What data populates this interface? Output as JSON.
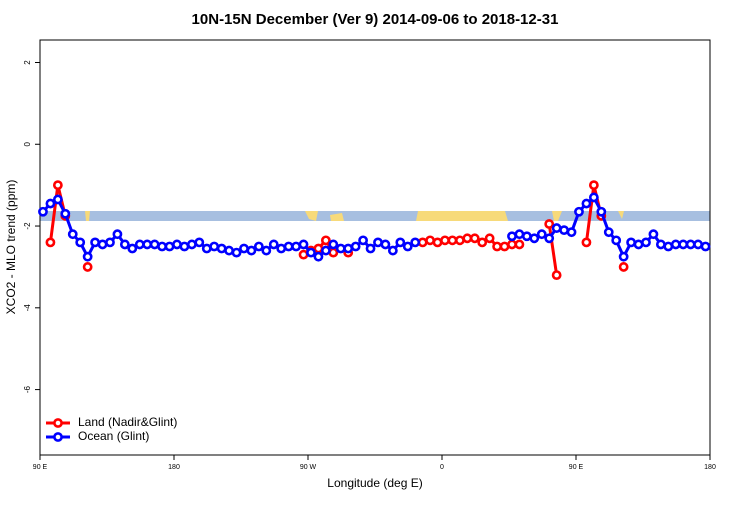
{
  "chart_data": {
    "type": "line",
    "title": "10N-15N December (Ver 9)   2014-09-06 to 2018-12-31",
    "x_label": "Longitude (deg E)",
    "y_label": "XCO2 - MLO trend (ppm)",
    "x": [
      92,
      97,
      102,
      107,
      112,
      117,
      122,
      127,
      132,
      137,
      142,
      147,
      152,
      157,
      162,
      167,
      172,
      177,
      182,
      187,
      192,
      197,
      202,
      207,
      212,
      217,
      222,
      227,
      232,
      237,
      242,
      247,
      252,
      257,
      262,
      267,
      272,
      277,
      282,
      287,
      292,
      297,
      302,
      307,
      312,
      317,
      322,
      327,
      332,
      337,
      342,
      347,
      352,
      357,
      362,
      367,
      372,
      377,
      382,
      387,
      392,
      397,
      402,
      407,
      412,
      417,
      422,
      427,
      432,
      437,
      442,
      447,
      452,
      457,
      462,
      467,
      472,
      477,
      482,
      487,
      492,
      497,
      502,
      507,
      512,
      517,
      522,
      527,
      532,
      537
    ],
    "series": [
      {
        "name": "Land (Nadir&Glint)",
        "color": "#ff0000",
        "values": [
          null,
          -2.4,
          -1.0,
          -1.75,
          null,
          null,
          -3.0,
          null,
          null,
          null,
          null,
          null,
          null,
          null,
          null,
          null,
          null,
          null,
          null,
          null,
          null,
          null,
          null,
          null,
          null,
          null,
          null,
          null,
          null,
          null,
          null,
          null,
          null,
          null,
          null,
          -2.7,
          -2.6,
          -2.55,
          -2.35,
          -2.65,
          null,
          -2.65,
          null,
          null,
          null,
          null,
          null,
          null,
          null,
          null,
          null,
          -2.4,
          -2.35,
          -2.4,
          -2.35,
          -2.35,
          -2.35,
          -2.3,
          -2.3,
          -2.4,
          -2.3,
          -2.5,
          -2.5,
          -2.45,
          -2.45,
          null,
          null,
          null,
          -1.95,
          -3.2,
          null,
          null,
          null,
          -2.4,
          -1.0,
          -1.75,
          null,
          null,
          -3.0,
          null,
          null,
          null,
          null,
          null,
          null,
          null,
          null,
          null,
          null,
          null
        ]
      },
      {
        "name": "Ocean (Glint)",
        "color": "#0000ff",
        "values": [
          -1.65,
          -1.45,
          -1.35,
          -1.7,
          -2.2,
          -2.4,
          -2.75,
          -2.4,
          -2.45,
          -2.4,
          -2.2,
          -2.45,
          -2.55,
          -2.45,
          -2.45,
          -2.45,
          -2.5,
          -2.5,
          -2.45,
          -2.5,
          -2.45,
          -2.4,
          -2.55,
          -2.5,
          -2.55,
          -2.6,
          -2.65,
          -2.55,
          -2.6,
          -2.5,
          -2.6,
          -2.45,
          -2.55,
          -2.5,
          -2.5,
          -2.45,
          -2.65,
          -2.75,
          -2.6,
          -2.45,
          -2.55,
          -2.55,
          -2.5,
          -2.35,
          -2.55,
          -2.4,
          -2.45,
          -2.6,
          -2.4,
          -2.5,
          -2.4,
          null,
          null,
          null,
          null,
          null,
          null,
          null,
          null,
          null,
          null,
          null,
          null,
          -2.25,
          -2.2,
          -2.25,
          -2.3,
          -2.2,
          -2.3,
          -2.05,
          -2.1,
          -2.15,
          -1.65,
          -1.45,
          -1.3,
          -1.65,
          -2.15,
          -2.35,
          -2.75,
          -2.4,
          -2.45,
          -2.4,
          -2.2,
          -2.45,
          -2.5,
          -2.45,
          -2.45,
          -2.45,
          -2.45,
          -2.5
        ]
      }
    ],
    "xlim": [
      90,
      540
    ],
    "xticks": [
      {
        "value": 90,
        "label": "90 E"
      },
      {
        "value": 180,
        "label": "180"
      },
      {
        "value": 270,
        "label": "90 W"
      },
      {
        "value": 360,
        "label": "0"
      },
      {
        "value": 450,
        "label": "90 E"
      },
      {
        "value": 540,
        "label": "180"
      }
    ],
    "ylim": [
      -7.6,
      2.55
    ],
    "yticks": [
      2,
      0,
      -2,
      -4,
      -6
    ],
    "legend": "bottom-left"
  }
}
